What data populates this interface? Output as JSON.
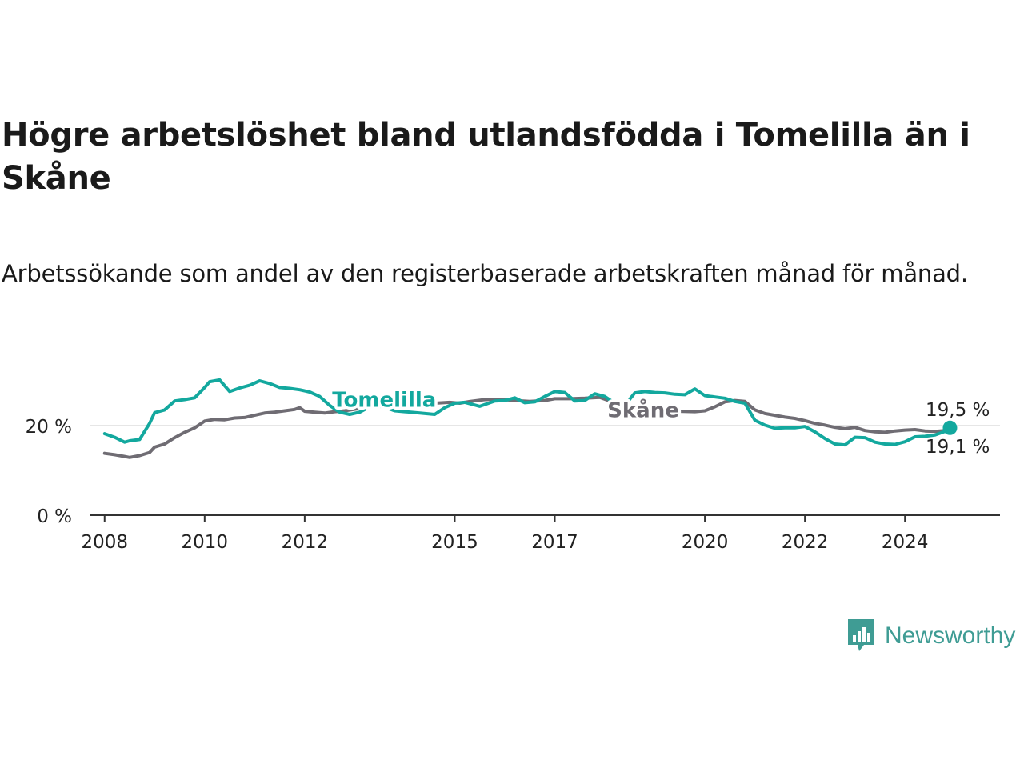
{
  "title": "Högre arbetslöshet bland utlandsfödda i Tomelilla än i Skåne",
  "subtitle": "Arbetssökande som andel av den registerbaserade arbetskraften månad för månad.",
  "brand": {
    "name": "Newsworthy",
    "icon": "newsworthy-logo-icon"
  },
  "colors": {
    "tomelilla": "#13a89e",
    "skane": "#6f6c73",
    "axis": "#333333",
    "grid": "#dddddd"
  },
  "chart_data": {
    "type": "line",
    "title": "Högre arbetslöshet bland utlandsfödda i Tomelilla än i Skåne",
    "xlabel": "",
    "ylabel": "",
    "xlim": [
      2007.7,
      2025.9
    ],
    "ylim": [
      0,
      30
    ],
    "y_ticks": [
      0,
      20
    ],
    "y_tick_labels": [
      "0 %",
      "20 %"
    ],
    "x_ticks": [
      2008,
      2010,
      2012,
      2015,
      2017,
      2020,
      2022,
      2024
    ],
    "x_tick_labels": [
      "2008",
      "2010",
      "2012",
      "2015",
      "2017",
      "2020",
      "2022",
      "2024"
    ],
    "grid": "horizontal",
    "end_labels": [
      "19,5 %",
      "19,1 %"
    ],
    "series": [
      {
        "name": "Tomelilla",
        "color": "#13a89e",
        "x": [
          2008.0,
          2008.2,
          2008.4,
          2008.5,
          2008.7,
          2008.9,
          2009.0,
          2009.2,
          2009.4,
          2009.6,
          2009.8,
          2010.0,
          2010.1,
          2010.3,
          2010.5,
          2010.7,
          2010.9,
          2011.1,
          2011.3,
          2011.5,
          2011.7,
          2011.9,
          2012.1,
          2012.3,
          2012.5,
          2012.7,
          2012.9,
          2013.1,
          2013.3,
          2013.5,
          2013.8,
          2014.0,
          2014.3,
          2014.6,
          2014.8,
          2015.0,
          2015.2,
          2015.5,
          2015.8,
          2016.0,
          2016.2,
          2016.4,
          2016.6,
          2016.8,
          2017.0,
          2017.2,
          2017.4,
          2017.6,
          2017.8,
          2018.0,
          2018.2,
          2018.4,
          2018.6,
          2018.8,
          2019.0,
          2019.2,
          2019.4,
          2019.6,
          2019.8,
          2020.0,
          2020.2,
          2020.4,
          2020.6,
          2020.8,
          2021.0,
          2021.2,
          2021.4,
          2021.6,
          2021.8,
          2022.0,
          2022.2,
          2022.4,
          2022.6,
          2022.8,
          2023.0,
          2023.2,
          2023.4,
          2023.6,
          2023.8,
          2024.0,
          2024.2,
          2024.4,
          2024.6,
          2024.8,
          2024.9
        ],
        "y": [
          18.2,
          17.4,
          16.3,
          16.6,
          16.9,
          20.5,
          22.9,
          23.5,
          25.5,
          25.8,
          26.2,
          28.5,
          29.8,
          30.2,
          27.6,
          28.4,
          29.0,
          30.0,
          29.4,
          28.5,
          28.3,
          28.0,
          27.5,
          26.5,
          24.5,
          23.0,
          22.5,
          23.0,
          24.2,
          24.5,
          23.3,
          23.1,
          22.8,
          22.5,
          24.0,
          25.0,
          25.2,
          24.3,
          25.5,
          25.6,
          26.2,
          25.1,
          25.3,
          26.5,
          27.6,
          27.4,
          25.5,
          25.6,
          27.1,
          26.5,
          25.0,
          24.5,
          27.3,
          27.6,
          27.4,
          27.3,
          27.0,
          26.9,
          28.2,
          26.7,
          26.4,
          26.1,
          25.4,
          25.0,
          21.2,
          20.1,
          19.4,
          19.5,
          19.5,
          19.8,
          18.6,
          17.1,
          15.9,
          15.7,
          17.4,
          17.3,
          16.3,
          15.9,
          15.8,
          16.4,
          17.5,
          17.6,
          17.9,
          18.7,
          19.5
        ]
      },
      {
        "name": "Skåne",
        "color": "#6f6c73",
        "x": [
          2008.0,
          2008.2,
          2008.4,
          2008.5,
          2008.7,
          2008.9,
          2009.0,
          2009.2,
          2009.4,
          2009.6,
          2009.8,
          2010.0,
          2010.2,
          2010.4,
          2010.6,
          2010.8,
          2011.0,
          2011.2,
          2011.4,
          2011.6,
          2011.8,
          2011.9,
          2012.0,
          2012.2,
          2012.4,
          2012.6,
          2012.8,
          2013.1,
          2013.4,
          2013.7,
          2014.0,
          2014.3,
          2014.6,
          2014.9,
          2015.1,
          2015.3,
          2015.6,
          2015.9,
          2016.2,
          2016.5,
          2016.8,
          2017.0,
          2017.3,
          2017.6,
          2017.9,
          2018.1,
          2018.3,
          2018.5,
          2018.7,
          2018.9,
          2019.2,
          2019.5,
          2019.8,
          2020.0,
          2020.2,
          2020.4,
          2020.6,
          2020.8,
          2021.0,
          2021.2,
          2021.4,
          2021.6,
          2021.8,
          2022.0,
          2022.2,
          2022.4,
          2022.6,
          2022.8,
          2023.0,
          2023.2,
          2023.4,
          2023.6,
          2023.8,
          2024.0,
          2024.2,
          2024.4,
          2024.6,
          2024.8,
          2024.9
        ],
        "y": [
          13.8,
          13.5,
          13.1,
          12.9,
          13.3,
          14.0,
          15.2,
          15.9,
          17.3,
          18.5,
          19.5,
          21.0,
          21.4,
          21.3,
          21.7,
          21.8,
          22.3,
          22.8,
          23.0,
          23.3,
          23.6,
          24.0,
          23.2,
          23.0,
          22.8,
          23.1,
          23.3,
          23.8,
          24.2,
          24.4,
          24.6,
          24.8,
          25.0,
          25.2,
          25.0,
          25.4,
          25.8,
          25.9,
          25.6,
          25.4,
          25.6,
          26.0,
          26.0,
          26.1,
          26.3,
          25.5,
          25.0,
          24.5,
          23.9,
          23.6,
          23.4,
          23.2,
          23.1,
          23.3,
          24.2,
          25.3,
          25.6,
          25.4,
          23.5,
          22.7,
          22.3,
          21.9,
          21.6,
          21.1,
          20.5,
          20.1,
          19.6,
          19.3,
          19.6,
          18.9,
          18.6,
          18.5,
          18.8,
          19.0,
          19.1,
          18.8,
          18.7,
          18.9,
          19.1
        ]
      }
    ]
  }
}
